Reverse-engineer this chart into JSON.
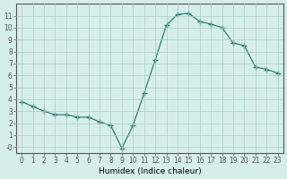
{
  "xlabel": "Humidex (Indice chaleur)",
  "x_values": [
    0,
    1,
    2,
    3,
    4,
    5,
    6,
    7,
    8,
    9,
    10,
    11,
    12,
    13,
    14,
    15,
    16,
    17,
    18,
    19,
    20,
    21,
    22,
    23
  ],
  "y_values": [
    3.8,
    3.4,
    3.0,
    2.7,
    2.7,
    2.5,
    2.5,
    2.1,
    1.8,
    -0.1,
    1.8,
    4.5,
    7.3,
    10.2,
    11.1,
    11.2,
    10.5,
    10.3,
    10.0,
    8.7,
    8.5,
    6.7,
    6.5,
    6.2
  ],
  "ylim": [
    -0.5,
    12
  ],
  "xlim": [
    -0.5,
    23.5
  ],
  "line_color": "#2e7d6e",
  "marker": "P",
  "bg_color": "#d6eeea",
  "grid_color": "#aaccc8",
  "axis_color": "#555555",
  "yticks": [
    0,
    1,
    2,
    3,
    4,
    5,
    6,
    7,
    8,
    9,
    10,
    11
  ],
  "ytick_labels": [
    "-0",
    "1",
    "2",
    "3",
    "4",
    "5",
    "6",
    "7",
    "8",
    "9",
    "10",
    "11"
  ],
  "xticks": [
    0,
    1,
    2,
    3,
    4,
    5,
    6,
    7,
    8,
    9,
    10,
    11,
    12,
    13,
    14,
    15,
    16,
    17,
    18,
    19,
    20,
    21,
    22,
    23
  ]
}
